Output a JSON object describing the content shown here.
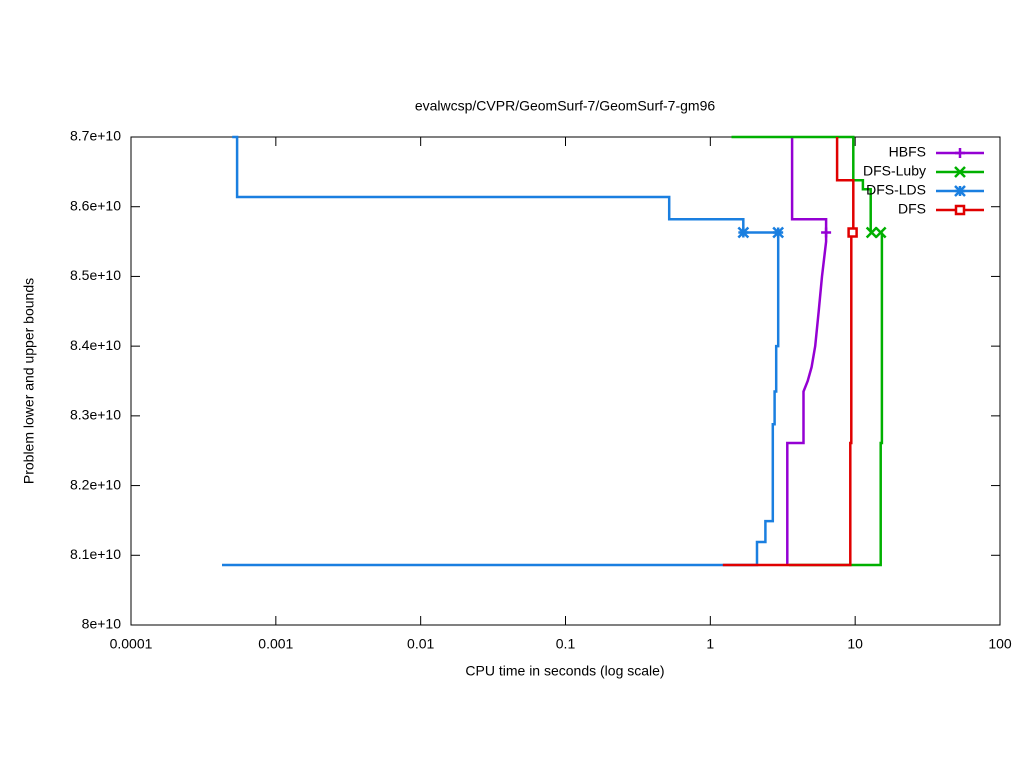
{
  "chart_data": {
    "type": "line",
    "title": "evalwcsp/CVPR/GeomSurf-7/GeomSurf-7-gm96",
    "xlabel": "CPU time in seconds (log scale)",
    "ylabel": "Problem lower and upper bounds",
    "xscale": "log",
    "xlim": [
      0.0001,
      100
    ],
    "xticks": [
      0.0001,
      0.001,
      0.01,
      0.1,
      1,
      10,
      100
    ],
    "ylim": [
      80000000000,
      87000000000
    ],
    "yticks": [
      {
        "value": 80000000000,
        "label": "8e+10"
      },
      {
        "value": 81000000000,
        "label": "8.1e+10"
      },
      {
        "value": 82000000000,
        "label": "8.2e+10"
      },
      {
        "value": 83000000000,
        "label": "8.3e+10"
      },
      {
        "value": 84000000000,
        "label": "8.4e+10"
      },
      {
        "value": 85000000000,
        "label": "8.5e+10"
      },
      {
        "value": 86000000000,
        "label": "8.6e+10"
      },
      {
        "value": 87000000000,
        "label": "8.7e+10"
      }
    ],
    "legend": "top-right",
    "series": [
      {
        "name": "HBFS",
        "color": "#9400d3",
        "marker": "plus",
        "x": [
          3.67,
          3.67,
          6.3,
          6.3,
          null,
          3.4,
          3.4,
          4.4,
          4.4,
          4.7,
          5.0,
          5.3,
          5.6,
          5.9,
          6.3,
          6.3
        ],
        "values": [
          87000000000,
          85820000000,
          85820000000,
          85630000000,
          null,
          80860000000,
          82610000000,
          82610000000,
          83350000000,
          83500000000,
          83700000000,
          84000000000,
          84500000000,
          85000000000,
          85500000000,
          85630000000
        ],
        "markers": {
          "x": [
            6.3
          ],
          "values": [
            85630000000
          ]
        }
      },
      {
        "name": "DFS-Luby",
        "color": "#00b000",
        "marker": "cross",
        "x": [
          1.4,
          9.7,
          9.7,
          11.3,
          11.3,
          12.8,
          12.8,
          null,
          3.5,
          15,
          15,
          15.3,
          15.3
        ],
        "values": [
          87000000000,
          87000000000,
          86380000000,
          86380000000,
          86250000000,
          86250000000,
          85630000000,
          null,
          80860000000,
          80860000000,
          82610000000,
          82610000000,
          85630000000
        ],
        "markers": {
          "x": [
            13,
            15
          ],
          "values": [
            85630000000,
            85630000000
          ]
        }
      },
      {
        "name": "DFS-LDS",
        "color": "#1a7fe0",
        "marker": "star",
        "x": [
          0.0005,
          0.00054,
          0.00054,
          0.52,
          0.52,
          1.69,
          1.69,
          2.94,
          null,
          0.000425,
          2.1,
          2.1,
          2.4,
          2.4,
          2.7,
          2.7,
          2.78,
          2.78,
          2.85,
          2.85,
          2.94,
          2.94
        ],
        "values": [
          87000000000,
          87000000000,
          86140000000,
          86140000000,
          85820000000,
          85820000000,
          85630000000,
          85630000000,
          null,
          80860000000,
          80860000000,
          81190000000,
          81190000000,
          81490000000,
          81490000000,
          82880000000,
          82880000000,
          83350000000,
          83350000000,
          84000000000,
          84000000000,
          85630000000
        ],
        "markers": {
          "x": [
            1.69,
            2.94
          ],
          "values": [
            85630000000,
            85630000000
          ]
        }
      },
      {
        "name": "DFS",
        "color": "#e00000",
        "marker": "square",
        "x": [
          7.5,
          7.5,
          9.7,
          9.7,
          null,
          1.22,
          9.25,
          9.25,
          9.4,
          9.4
        ],
        "values": [
          87000000000,
          86380000000,
          86380000000,
          85630000000,
          null,
          80860000000,
          80860000000,
          82610000000,
          82610000000,
          85630000000
        ],
        "markers": {
          "x": [
            9.6
          ],
          "values": [
            85630000000
          ]
        }
      }
    ]
  }
}
